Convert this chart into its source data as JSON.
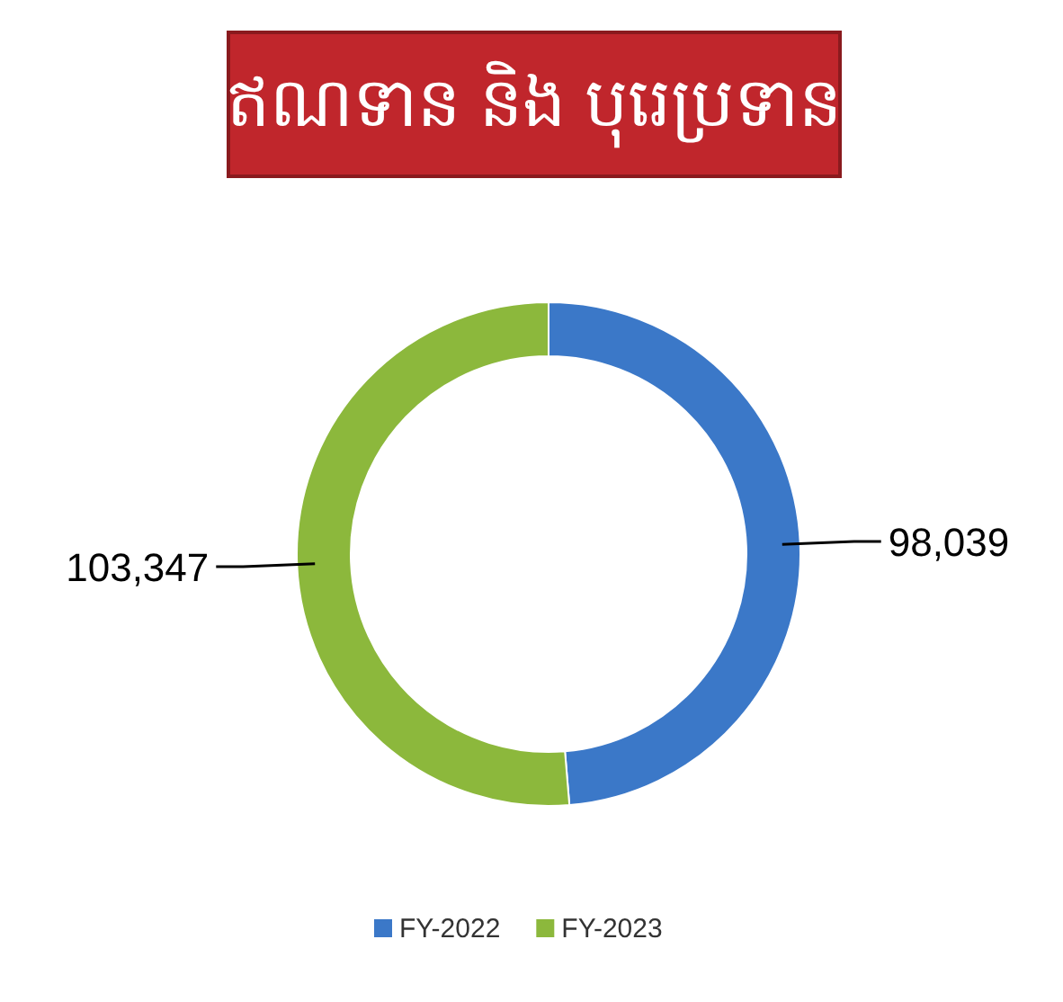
{
  "chart_data": {
    "type": "donut",
    "title": "ឥណទាន និង បុរេប្រទាន",
    "categories": [
      "FY-2022",
      "FY-2023"
    ],
    "values": [
      98039,
      103347
    ],
    "colors": [
      "#3b78c8",
      "#8cb83c"
    ],
    "value_labels": [
      "98,039",
      "103,347"
    ],
    "legend": "bottom"
  }
}
